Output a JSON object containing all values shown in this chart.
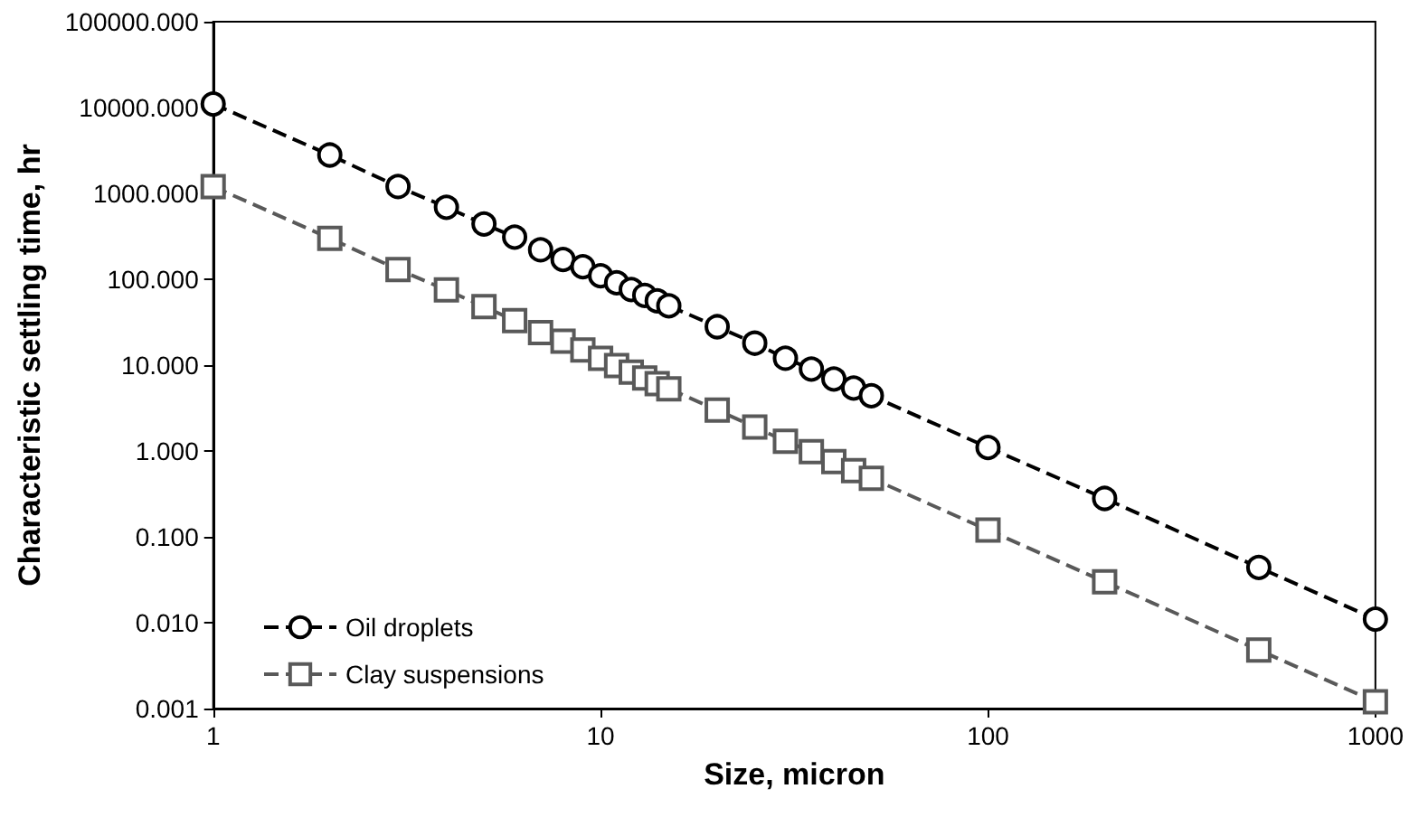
{
  "chart_data": {
    "type": "line",
    "xlabel": "Size, micron",
    "ylabel": "Characteristic settling time, hr",
    "x": [
      1,
      2,
      3,
      4,
      5,
      6,
      7,
      8,
      9,
      10,
      11,
      12,
      13,
      14,
      15,
      20,
      25,
      30,
      35,
      40,
      45,
      50,
      100,
      200,
      500,
      1000
    ],
    "series": [
      {
        "name": "Oil droplets",
        "color": "#000000",
        "marker": "circle",
        "values": [
          11000,
          2800,
          1200,
          690,
          440,
          310,
          220,
          170,
          140,
          110,
          91,
          76,
          65,
          56,
          49,
          28,
          18,
          12,
          9.0,
          6.9,
          5.4,
          4.4,
          1.1,
          0.28,
          0.044,
          0.011
        ]
      },
      {
        "name": "Clay suspensions",
        "color": "#595959",
        "marker": "square",
        "values": [
          1200,
          300,
          130,
          75,
          48,
          33,
          24,
          19,
          15,
          12,
          9.9,
          8.3,
          7.1,
          6.1,
          5.3,
          3.0,
          1.9,
          1.3,
          0.98,
          0.75,
          0.59,
          0.48,
          0.12,
          0.03,
          0.0048,
          0.0012
        ]
      }
    ],
    "log": "xy",
    "xlim": [
      1,
      1000
    ],
    "xticks": [
      1,
      10,
      100,
      1000
    ],
    "ylim": [
      0.001,
      100000
    ],
    "yticks": [
      {
        "value": 0.001,
        "label": "0.001"
      },
      {
        "value": 0.01,
        "label": "0.010"
      },
      {
        "value": 0.1,
        "label": "0.100"
      },
      {
        "value": 1,
        "label": "1.000"
      },
      {
        "value": 10,
        "label": "10.000"
      },
      {
        "value": 100,
        "label": "100.000"
      },
      {
        "value": 1000,
        "label": "1000.000"
      },
      {
        "value": 10000,
        "label": "10000.000"
      },
      {
        "value": 100000,
        "label": "100000.000"
      }
    ],
    "grid": false,
    "legend": "bottom left",
    "line_style": "dashed"
  }
}
